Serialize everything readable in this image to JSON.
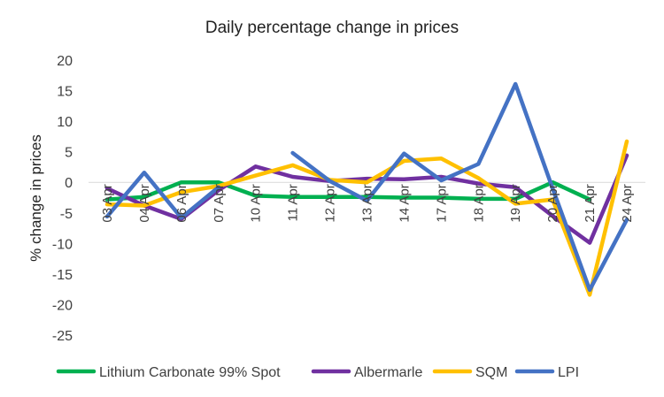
{
  "chart_data": {
    "type": "line",
    "title": "Daily percentage change in prices",
    "xlabel": "",
    "ylabel": "% change in prices",
    "ylim": [
      -25,
      20
    ],
    "yticks": [
      20,
      15,
      10,
      5,
      0,
      -5,
      -10,
      -15,
      -20,
      -25
    ],
    "grid": false,
    "legend": "bottom",
    "categories": [
      "03 Apr",
      "04 Apr",
      "06 Apr",
      "07 Apr",
      "10 Apr",
      "11 Apr",
      "12 Apr",
      "13 Apr",
      "14 Apr",
      "17 Apr",
      "18 Apr",
      "19 Apr",
      "20 Apr",
      "21 Apr",
      "24 Apr"
    ],
    "series": [
      {
        "name": "Lithium Carbonate 99% Spot",
        "color": "#00B050",
        "values": [
          -2.8,
          -2.4,
          0.0,
          0.0,
          -2.2,
          -2.4,
          -2.4,
          -2.4,
          -2.5,
          -2.5,
          -2.7,
          -2.7,
          0.0,
          -2.8,
          null
        ]
      },
      {
        "name": "Albermarle",
        "color": "#7030A0",
        "values": [
          -1.0,
          -3.8,
          -6.0,
          -1.3,
          2.6,
          0.9,
          0.2,
          0.6,
          0.5,
          0.9,
          -0.2,
          -0.8,
          -5.5,
          -9.9,
          4.4
        ]
      },
      {
        "name": "SQM",
        "color": "#FFC000",
        "values": [
          -3.6,
          -3.8,
          -1.6,
          -0.6,
          1.1,
          2.8,
          0.4,
          0.0,
          3.5,
          3.9,
          0.7,
          -3.5,
          -2.8,
          -18.4,
          6.7
        ]
      },
      {
        "name": "LPI",
        "color": "#4472C4",
        "values": [
          -5.6,
          1.6,
          -5.8,
          -0.8,
          null,
          4.8,
          0.2,
          -3.0,
          4.7,
          0.3,
          3.0,
          16.1,
          -1.0,
          -17.6,
          -6.1
        ]
      }
    ]
  }
}
